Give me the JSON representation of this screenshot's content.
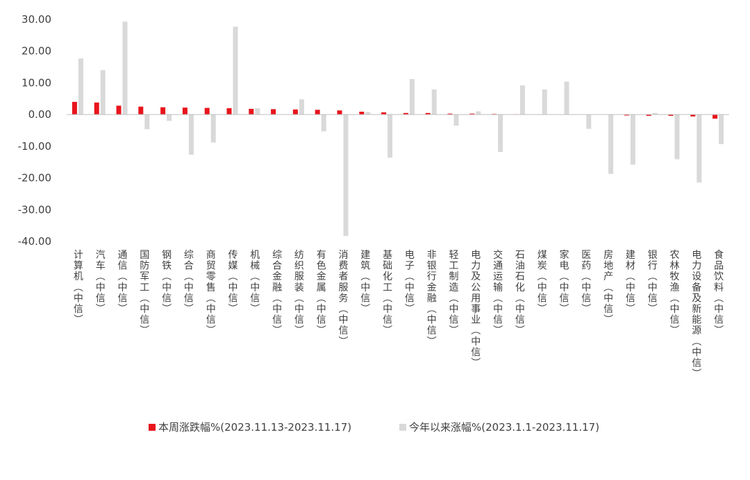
{
  "chart_data": {
    "type": "bar",
    "categories": [
      "计算机(中信)",
      "汽车(中信)",
      "通信(中信)",
      "国防军工(中信)",
      "钢铁(中信)",
      "综合(中信)",
      "商贸零售(中信)",
      "传媒(中信)",
      "机械(中信)",
      "综合金融(中信)",
      "纺织服装(中信)",
      "有色金属(中信)",
      "消费者服务(中信)",
      "建筑(中信)",
      "基础化工(中信)",
      "电子(中信)",
      "非银行金融(中信)",
      "轻工制造(中信)",
      "电力及公用事业(中信)",
      "交通运输(中信)",
      "石油石化(中信)",
      "煤炭(中信)",
      "家电(中信)",
      "医药(中信)",
      "房地产(中信)",
      "建材(中信)",
      "银行(中信)",
      "农林牧渔(中信)",
      "电力设备及新能源(中信)",
      "食品饮料(中信)"
    ],
    "series": [
      {
        "name": "本周涨跌幅%(2023.11.13-2023.11.17)",
        "color": "#e8141c",
        "values": [
          4.0,
          3.8,
          2.8,
          2.5,
          2.3,
          2.2,
          2.1,
          2.0,
          1.8,
          1.7,
          1.6,
          1.5,
          1.3,
          0.9,
          0.7,
          0.5,
          0.5,
          0.3,
          0.3,
          0.2,
          0.1,
          0.0,
          0.0,
          0.0,
          0.0,
          -0.3,
          -0.4,
          -0.4,
          -0.6,
          -1.3
        ]
      },
      {
        "name": "今年以来涨幅%(2023.1.1-2023.11.17)",
        "color": "#d9d9d9",
        "values": [
          17.7,
          14.0,
          29.3,
          -4.6,
          -2.0,
          -12.7,
          -8.8,
          27.7,
          2.0,
          0.0,
          4.8,
          -5.3,
          -38.3,
          0.8,
          -13.6,
          11.2,
          7.9,
          -3.5,
          1.0,
          -11.8,
          9.2,
          7.9,
          10.4,
          -4.5,
          -18.7,
          -15.8,
          0.5,
          -14.1,
          -21.4,
          -9.3
        ]
      }
    ],
    "yticks": [
      "30.00",
      "20.00",
      "10.00",
      "0.00",
      "-10.00",
      "-20.00",
      "-30.00",
      "-40.00"
    ],
    "ylim": [
      -40,
      30
    ],
    "legend_position": "bottom",
    "grid": false
  }
}
